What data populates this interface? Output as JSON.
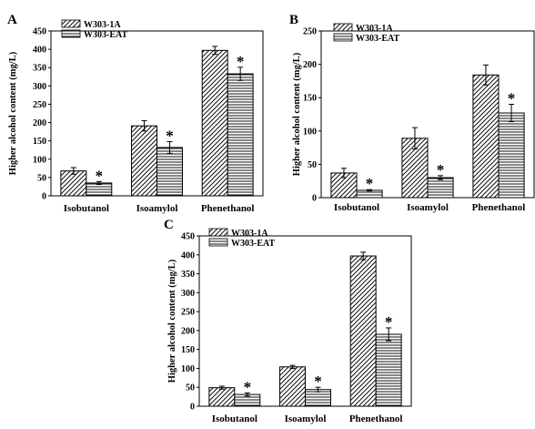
{
  "panels": [
    {
      "label": "A",
      "ylabel": "Higher alcohol content (mg/L)",
      "ylim": [
        0,
        450
      ],
      "yticks": [
        0,
        50,
        100,
        150,
        200,
        250,
        300,
        350,
        400,
        450
      ],
      "legend": [
        "W303-1A",
        "W303-EAT"
      ]
    },
    {
      "label": "B",
      "ylabel": "Higher alcohol content (mg/L)",
      "ylim": [
        0,
        250
      ],
      "yticks": [
        0,
        50,
        100,
        150,
        200,
        250
      ],
      "legend": [
        "W303-1A",
        "W303-EAT"
      ]
    },
    {
      "label": "C",
      "ylabel": "Higher alcohol content (mg/L)",
      "ylim": [
        0,
        450
      ],
      "yticks": [
        0,
        50,
        100,
        150,
        200,
        250,
        300,
        350,
        400,
        450
      ],
      "legend": [
        "W303-1A",
        "W303-EAT"
      ]
    }
  ],
  "chart_data": [
    {
      "type": "bar",
      "panel": "A",
      "categories": [
        "Isobutanol",
        "Isoamylol",
        "Phenethanol"
      ],
      "series": [
        {
          "name": "W303-1A",
          "values": [
            68,
            191,
            397
          ],
          "errors": [
            9,
            14,
            11
          ]
        },
        {
          "name": "W303-EAT",
          "values": [
            35,
            132,
            333
          ],
          "errors": [
            4,
            16,
            18
          ]
        }
      ],
      "significance": [
        "*",
        "*",
        "*"
      ],
      "title": "",
      "xlabel": "",
      "ylabel": "Higher alcohol content (mg/L)",
      "ylim": [
        0,
        450
      ],
      "legend_position": "top-left"
    },
    {
      "type": "bar",
      "panel": "B",
      "categories": [
        "Isobutanol",
        "Isoamylol",
        "Phenethanol"
      ],
      "series": [
        {
          "name": "W303-1A",
          "values": [
            37,
            89,
            184
          ],
          "errors": [
            7,
            16,
            15
          ]
        },
        {
          "name": "W303-EAT",
          "values": [
            11,
            30,
            127
          ],
          "errors": [
            1,
            3,
            13
          ]
        }
      ],
      "significance": [
        "*",
        "*",
        "*"
      ],
      "title": "",
      "xlabel": "",
      "ylabel": "Higher alcohol content (mg/L)",
      "ylim": [
        0,
        250
      ],
      "legend_position": "top-left"
    },
    {
      "type": "bar",
      "panel": "C",
      "categories": [
        "Isobutanol",
        "Isoamylol",
        "Phenethanol"
      ],
      "series": [
        {
          "name": "W303-1A",
          "values": [
            49,
            104,
            397
          ],
          "errors": [
            4,
            4,
            10
          ]
        },
        {
          "name": "W303-EAT",
          "values": [
            31,
            44,
            190
          ],
          "errors": [
            4,
            6,
            17
          ]
        }
      ],
      "significance": [
        "*",
        "*",
        "*"
      ],
      "title": "",
      "xlabel": "",
      "ylabel": "Higher alcohol content (mg/L)",
      "ylim": [
        0,
        450
      ],
      "legend_position": "top-left"
    }
  ]
}
